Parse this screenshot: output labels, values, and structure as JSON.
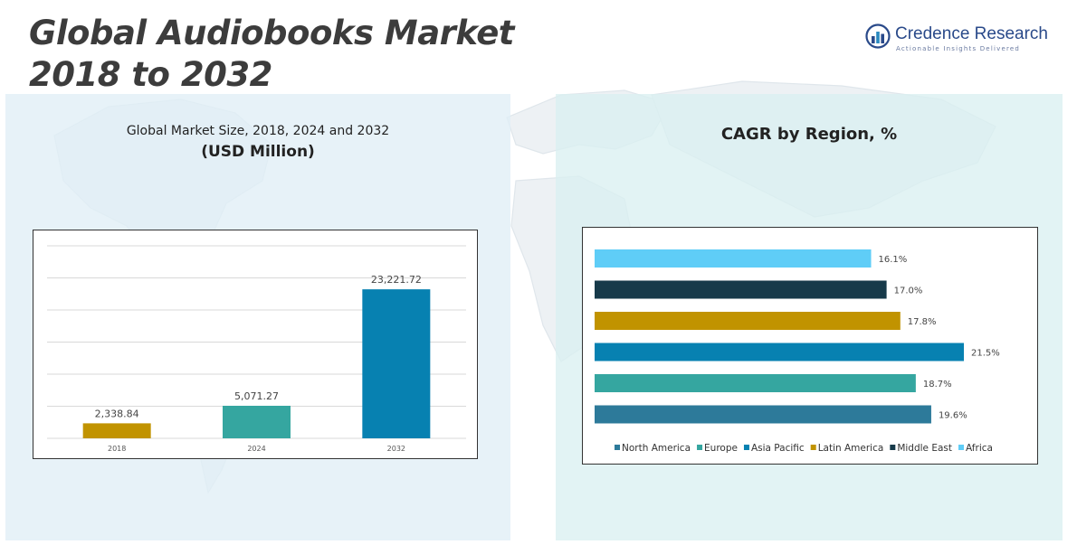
{
  "header": {
    "title_line1": "Global Audiobooks Market",
    "title_line2": "2018 to 2032",
    "logo_name": "Credence Research",
    "logo_tagline": "Actionable Insights Delivered"
  },
  "left_panel": {
    "title": "Global Market Size, 2018, 2024 and 2032",
    "subtitle": "(USD Million)"
  },
  "right_panel": {
    "title": "CAGR by Region, %"
  },
  "colors": {
    "accent_gold": "#c19300",
    "accent_teal": "#35a6a0",
    "accent_blue": "#0781b1",
    "title_text": "#3c3c3c"
  },
  "chart_data": [
    {
      "type": "bar",
      "title": "Global Market Size, 2018, 2024 and 2032",
      "subtitle": "(USD Million)",
      "categories": [
        "2018",
        "2024",
        "2032"
      ],
      "values": [
        2338.84,
        5071.27,
        23221.72
      ],
      "value_labels": [
        "2,338.84",
        "5,071.27",
        "23,221.72"
      ],
      "colors": [
        "#c19300",
        "#35a6a0",
        "#0781b1"
      ],
      "ylim": [
        0,
        30000
      ],
      "grid": true,
      "legend": "none"
    },
    {
      "type": "bar",
      "orientation": "horizontal",
      "title": "CAGR by Region, %",
      "categories": [
        "North America",
        "Europe",
        "Asia Pacific",
        "Latin America",
        "Middle East",
        "Africa"
      ],
      "values": [
        19.6,
        18.7,
        21.5,
        17.8,
        17.0,
        16.1
      ],
      "value_labels": [
        "19.6%",
        "18.7%",
        "21.5%",
        "17.8%",
        "17.0%",
        "16.1%"
      ],
      "colors": [
        "#2d7a9a",
        "#35a6a0",
        "#0781b1",
        "#c19300",
        "#173a4a",
        "#5fcdf7"
      ],
      "xlim": [
        0,
        24
      ],
      "grid": false,
      "legend": "bottom"
    }
  ]
}
